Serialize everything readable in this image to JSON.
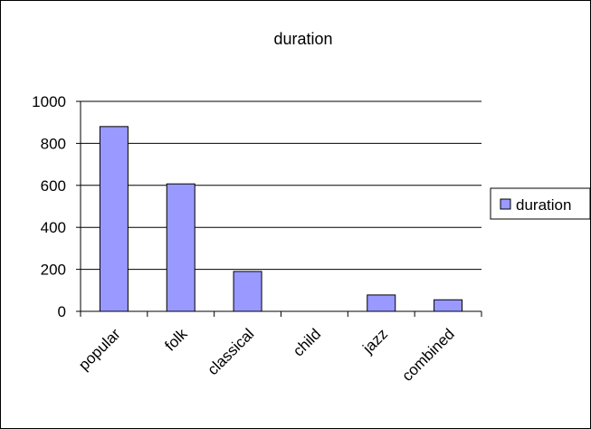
{
  "chart_data": {
    "type": "bar",
    "title": "duration",
    "categories": [
      "popular",
      "folk",
      "classical",
      "child",
      "jazz",
      "combined"
    ],
    "series": [
      {
        "name": "duration",
        "values": [
          880,
          607,
          190,
          0,
          78,
          55
        ],
        "color": "#9999ff"
      }
    ],
    "ylim": [
      0,
      1000
    ],
    "y_ticks": [
      "0",
      "200",
      "400",
      "600",
      "800",
      "1000"
    ],
    "grid": true,
    "legend": "right",
    "xlabel": "",
    "ylabel": ""
  }
}
